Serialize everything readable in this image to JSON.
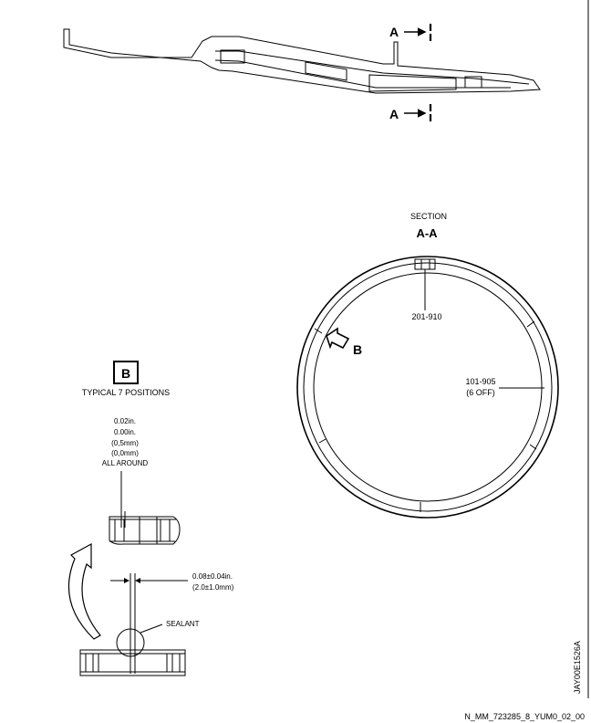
{
  "drawing": {
    "section_marker_top": {
      "letter": "A"
    },
    "section_marker_bottom": {
      "letter": "A"
    },
    "section_title": "SECTION",
    "section_id": "A-A",
    "callout_ring": "201-910",
    "callout_segment_line1": "101-905",
    "callout_segment_line2": "(6 OFF)",
    "detail_arrow_letter": "B",
    "detail_box_letter": "B",
    "detail_caption": "TYPICAL 7 POSITIONS",
    "gap_line1": "0.02in.",
    "gap_line2": "0.00in.",
    "gap_line3": "(0,5mm)",
    "gap_line4": "(0,0mm)",
    "gap_line5": "ALL AROUND",
    "dim_line1": "0.08±0.04in.",
    "dim_line2": "(2.0±1.0mm)",
    "sealant_label": "SEALANT",
    "drawing_id": "JAY00E1526A",
    "file_ref": "N_MM_723285_8_YUM0_02_00"
  }
}
